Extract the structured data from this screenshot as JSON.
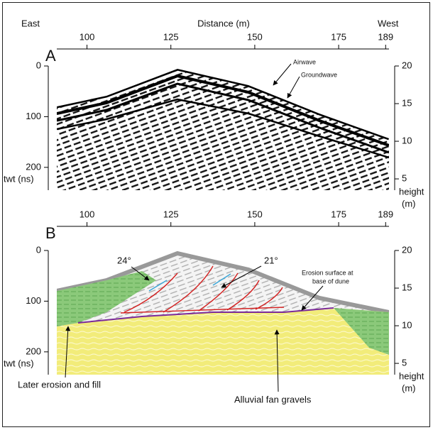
{
  "header": {
    "east": "East",
    "distance_label": "Distance (m)",
    "west": "West"
  },
  "distance_lim": [
    91,
    190
  ],
  "twt_lim": [
    0,
    245
  ],
  "height_lim": [
    20,
    3.5
  ],
  "panels": [
    {
      "label": "A",
      "distance_ticks": [
        100,
        125,
        150,
        175,
        189
      ],
      "twt_ticks": [
        0,
        100,
        200
      ],
      "twt_label": "twt (ns)",
      "height_ticks": [
        20,
        15,
        10,
        5
      ],
      "height_label": "height",
      "height_unit": "(m)",
      "annotations": {
        "airwave": "Airwave",
        "groundwave": "Groundwave"
      }
    },
    {
      "label": "B",
      "distance_ticks": [
        100,
        125,
        150,
        175,
        189
      ],
      "twt_ticks": [
        0,
        100,
        200
      ],
      "twt_label": "twt (ns)",
      "height_ticks": [
        20,
        15,
        10,
        5
      ],
      "height_label": "height",
      "height_unit": "(m)",
      "annotations": {
        "dip_left": "24°",
        "dip_right": "21°",
        "erosion": [
          "Erosion surface at",
          "base of dune"
        ],
        "fill": "Later erosion and fill",
        "gravels": "Alluvial fan gravels"
      }
    }
  ]
}
